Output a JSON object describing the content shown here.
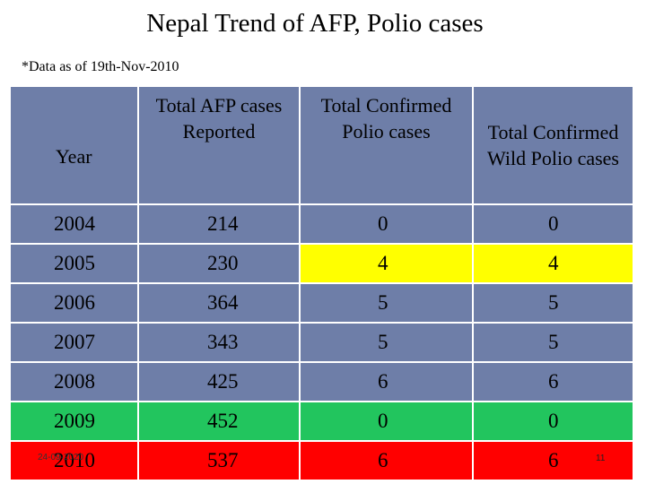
{
  "title": "Nepal Trend of AFP, Polio cases",
  "subtitle": "*Data as of 19th-Nov-2010",
  "table": {
    "headers": [
      "Year",
      "Total AFP cases Reported",
      "Total Confirmed Polio cases",
      "Total Confirmed Wild Polio cases"
    ],
    "rows": [
      [
        "2004",
        "214",
        "0",
        "0"
      ],
      [
        "2005",
        "230",
        "4",
        "4"
      ],
      [
        "2006",
        "364",
        "5",
        "5"
      ],
      [
        "2007",
        "343",
        "5",
        "5"
      ],
      [
        "2008",
        "425",
        "6",
        "6"
      ],
      [
        "2009",
        "452",
        "0",
        "0"
      ],
      [
        "2010",
        "537",
        "6",
        "6"
      ]
    ]
  },
  "colors": {
    "table_blue": "#6e7ea8",
    "highlight_yellow": "#ffff00",
    "highlight_green": "#22c55e",
    "highlight_red": "#ff0000"
  },
  "footer": {
    "date": "24-09-2020",
    "page_number": "11"
  }
}
